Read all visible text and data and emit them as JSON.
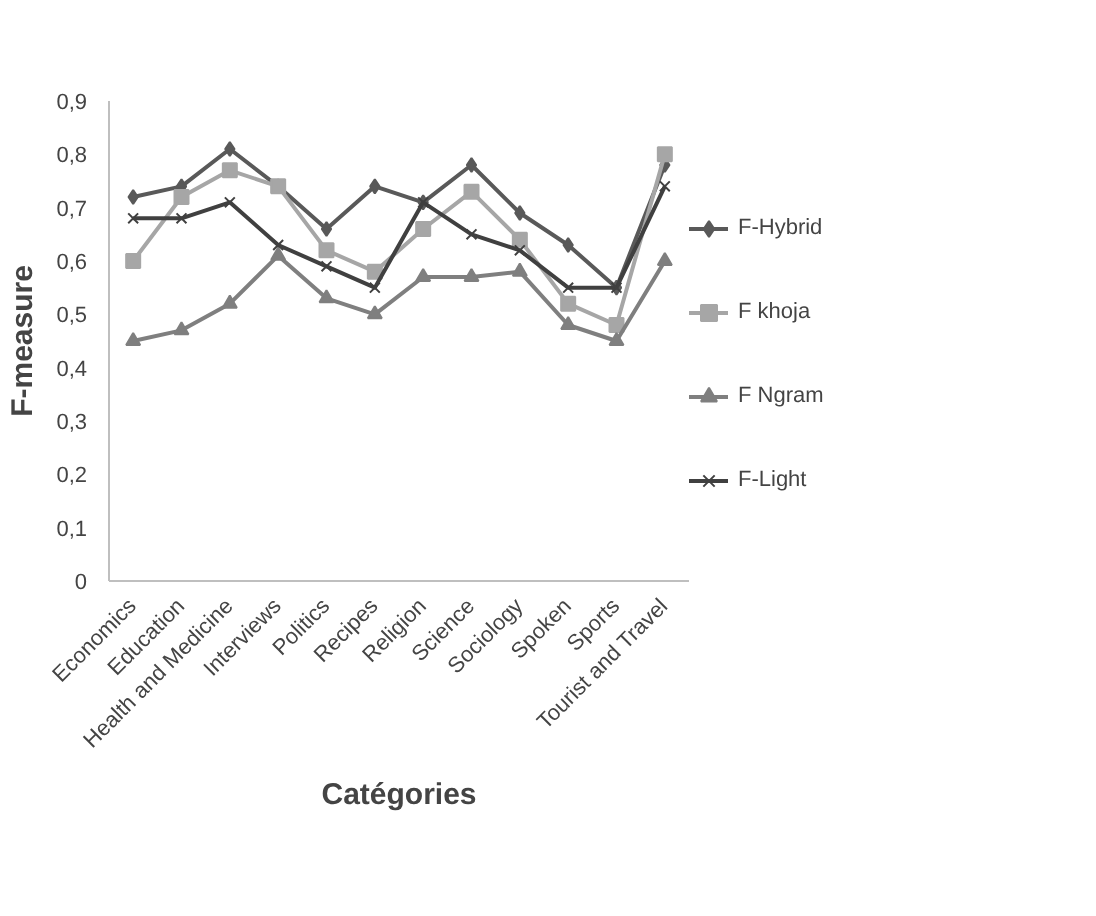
{
  "chart_data": {
    "type": "line",
    "xlabel": "Catégories",
    "ylabel": "F-measure",
    "categories": [
      "Economics",
      "Education",
      "Health and Medicine",
      "Interviews",
      "Politics",
      "Recipes",
      "Religion",
      "Science",
      "Sociology",
      "Spoken",
      "Sports",
      "Tourist and Travel"
    ],
    "series": [
      {
        "name": "F-Hybrid",
        "color": "#595959",
        "marker": "diamond",
        "values": [
          0.72,
          0.74,
          0.81,
          0.74,
          0.66,
          0.74,
          0.71,
          0.78,
          0.69,
          0.63,
          0.55,
          0.78
        ]
      },
      {
        "name": "F khoja",
        "color": "#a6a6a6",
        "marker": "square",
        "values": [
          0.6,
          0.72,
          0.77,
          0.74,
          0.62,
          0.58,
          0.66,
          0.73,
          0.64,
          0.52,
          0.48,
          0.8
        ]
      },
      {
        "name": "F Ngram",
        "color": "#7f7f7f",
        "marker": "triangle",
        "values": [
          0.45,
          0.47,
          0.52,
          0.61,
          0.53,
          0.5,
          0.57,
          0.57,
          0.58,
          0.48,
          0.45,
          0.6
        ]
      },
      {
        "name": "F-Light",
        "color": "#404040",
        "marker": "cross",
        "values": [
          0.68,
          0.68,
          0.71,
          0.63,
          0.59,
          0.55,
          0.71,
          0.65,
          0.62,
          0.55,
          0.55,
          0.74
        ]
      }
    ],
    "ylim": [
      0,
      0.9
    ],
    "yticks": [
      {
        "value": 0,
        "label": "0"
      },
      {
        "value": 0.1,
        "label": "0,1"
      },
      {
        "value": 0.2,
        "label": "0,2"
      },
      {
        "value": 0.3,
        "label": "0,3"
      },
      {
        "value": 0.4,
        "label": "0,4"
      },
      {
        "value": 0.5,
        "label": "0,5"
      },
      {
        "value": 0.6,
        "label": "0,6"
      },
      {
        "value": 0.7,
        "label": "0,7"
      },
      {
        "value": 0.8,
        "label": "0,8"
      },
      {
        "value": 0.9,
        "label": "0,9"
      }
    ],
    "grid": false,
    "legend": "right",
    "line_style": "solid"
  }
}
